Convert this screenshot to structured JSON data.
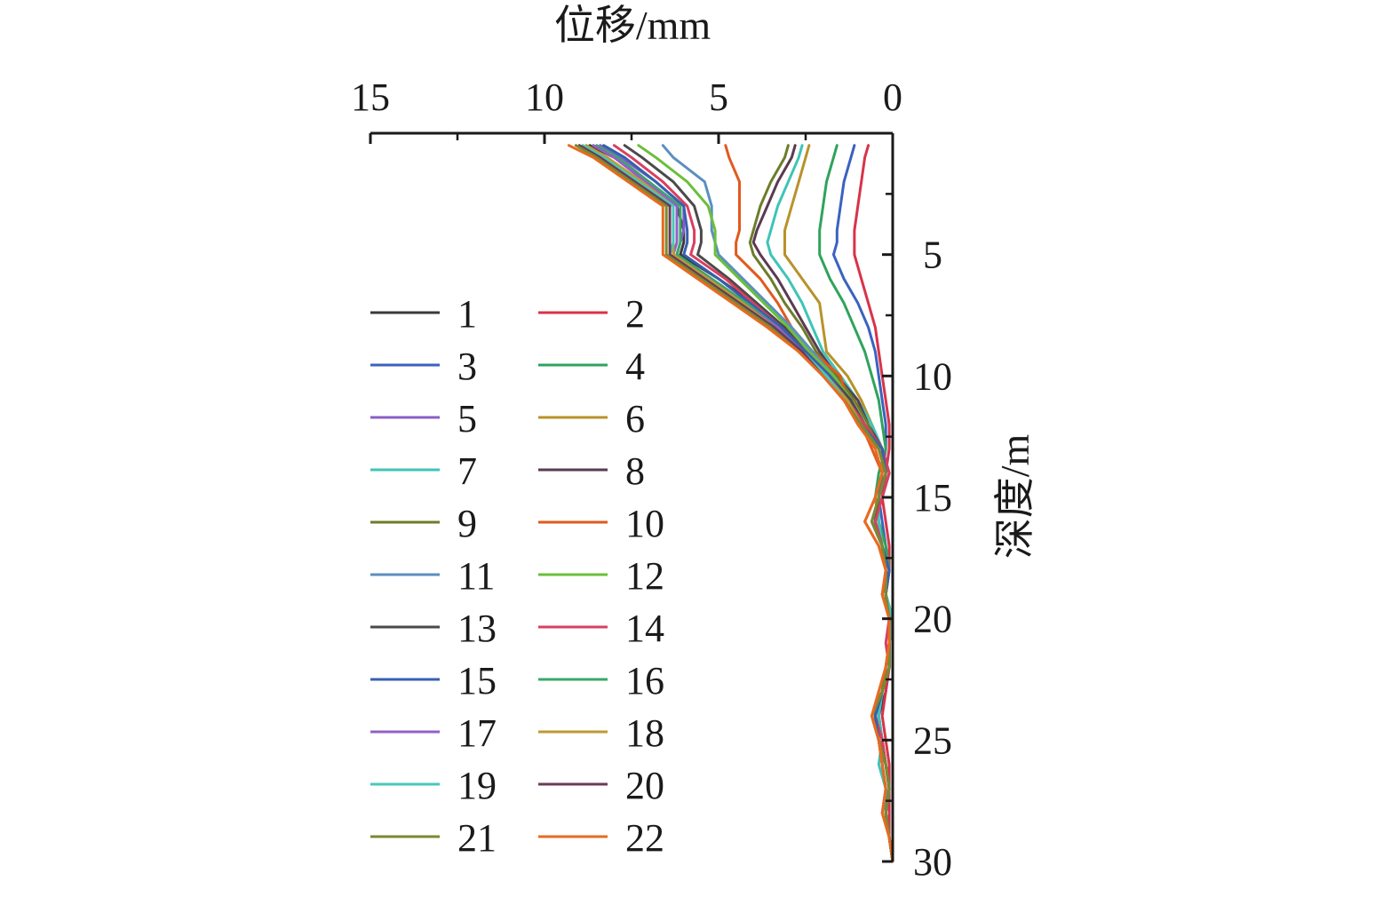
{
  "chart_data": {
    "type": "line",
    "title": "",
    "xlabel": "位移/mm",
    "ylabel": "深度/m",
    "xlim": [
      15,
      0
    ],
    "ylim": [
      0,
      30
    ],
    "x_axis_position": "top",
    "y_axis_position": "right",
    "x_ticks": [
      15,
      10,
      5,
      0
    ],
    "x_tick_labels": [
      "15",
      "10",
      "5",
      "0"
    ],
    "y_ticks": [
      5,
      10,
      15,
      20,
      25,
      30
    ],
    "y_tick_labels": [
      "5",
      "10",
      "15",
      "20",
      "25",
      "30"
    ],
    "grid": false,
    "legend_position": "lower-left, two columns",
    "depth": [
      0.5,
      1,
      2,
      3,
      4,
      4.5,
      5,
      6,
      7,
      8,
      9,
      10,
      11,
      12,
      13,
      14,
      15,
      16,
      17,
      18,
      19,
      20,
      21,
      22,
      23,
      24,
      25,
      26,
      27,
      28,
      29,
      30
    ],
    "series": [
      {
        "name": "1",
        "color": "#3a3a3a",
        "values": [
          8.7,
          8.0,
          7.0,
          6.2,
          6.0,
          6.0,
          6.1,
          5.0,
          4.0,
          3.2,
          2.5,
          1.7,
          1.2,
          0.8,
          0.3,
          0.1,
          0.3,
          0.5,
          0.3,
          0.1,
          0.2,
          0.0,
          0.1,
          0.1,
          0.2,
          0.4,
          0.3,
          0.2,
          0.1,
          0.2,
          0.1,
          0.0
        ]
      },
      {
        "name": "2",
        "color": "#d8334a",
        "values": [
          0.7,
          0.8,
          0.9,
          1.0,
          1.1,
          1.1,
          1.1,
          0.9,
          0.7,
          0.5,
          0.4,
          0.3,
          0.2,
          0.1,
          0.1,
          0.2,
          0.3,
          0.2,
          0.1,
          0.1,
          0.2,
          0.1,
          0.1,
          0.1,
          0.2,
          0.3,
          0.2,
          0.1,
          0.1,
          0.1,
          0.1,
          0.0
        ]
      },
      {
        "name": "3",
        "color": "#3a62c0",
        "values": [
          1.1,
          1.2,
          1.4,
          1.5,
          1.6,
          1.6,
          1.7,
          1.4,
          1.0,
          0.7,
          0.5,
          0.4,
          0.3,
          0.2,
          0.2,
          0.3,
          0.4,
          0.3,
          0.2,
          0.1,
          0.2,
          0.1,
          0.1,
          0.1,
          0.3,
          0.4,
          0.3,
          0.2,
          0.1,
          0.2,
          0.1,
          0.0
        ]
      },
      {
        "name": "4",
        "color": "#2fa35c",
        "values": [
          1.6,
          1.7,
          1.9,
          2.0,
          2.1,
          2.1,
          2.1,
          1.8,
          1.4,
          1.1,
          0.8,
          0.6,
          0.4,
          0.3,
          0.2,
          0.4,
          0.5,
          0.4,
          0.2,
          0.1,
          0.3,
          0.1,
          0.1,
          0.2,
          0.3,
          0.5,
          0.3,
          0.2,
          0.1,
          0.2,
          0.1,
          0.0
        ]
      },
      {
        "name": "5",
        "color": "#8a5cc7",
        "values": [
          8.4,
          7.8,
          6.8,
          6.0,
          6.0,
          6.1,
          6.2,
          5.2,
          4.2,
          3.3,
          2.5,
          1.8,
          1.3,
          0.9,
          0.4,
          0.2,
          0.4,
          0.6,
          0.3,
          0.2,
          0.2,
          0.0,
          0.1,
          0.1,
          0.3,
          0.5,
          0.4,
          0.2,
          0.1,
          0.2,
          0.1,
          0.0
        ]
      },
      {
        "name": "6",
        "color": "#b8922a",
        "values": [
          2.4,
          2.5,
          2.7,
          2.9,
          3.1,
          3.1,
          3.1,
          2.6,
          2.1,
          2.0,
          1.9,
          1.3,
          0.9,
          0.6,
          0.3,
          0.3,
          0.5,
          0.4,
          0.3,
          0.2,
          0.2,
          0.1,
          0.1,
          0.1,
          0.3,
          0.5,
          0.3,
          0.2,
          0.1,
          0.2,
          0.1,
          0.0
        ]
      },
      {
        "name": "7",
        "color": "#3ec4b8",
        "values": [
          2.6,
          2.7,
          3.0,
          3.3,
          3.5,
          3.6,
          3.5,
          3.0,
          2.6,
          2.3,
          2.0,
          1.5,
          1.0,
          0.6,
          0.3,
          0.2,
          0.4,
          0.4,
          0.3,
          0.2,
          0.2,
          0.1,
          0.1,
          0.1,
          0.3,
          0.4,
          0.3,
          0.4,
          0.2,
          0.2,
          0.1,
          0.0
        ]
      },
      {
        "name": "8",
        "color": "#5b3a52",
        "values": [
          2.8,
          2.9,
          3.3,
          3.6,
          3.9,
          4.0,
          3.8,
          3.3,
          2.9,
          2.5,
          2.1,
          1.6,
          1.0,
          0.7,
          0.3,
          0.2,
          0.4,
          0.5,
          0.3,
          0.2,
          0.2,
          0.1,
          0.1,
          0.2,
          0.3,
          0.6,
          0.4,
          0.3,
          0.2,
          0.2,
          0.1,
          0.0
        ]
      },
      {
        "name": "9",
        "color": "#6d7c2a",
        "values": [
          3.0,
          3.1,
          3.5,
          3.8,
          4.0,
          4.1,
          4.0,
          3.5,
          3.1,
          2.6,
          2.2,
          1.6,
          1.1,
          0.7,
          0.4,
          0.2,
          0.4,
          0.5,
          0.3,
          0.2,
          0.2,
          0.0,
          0.1,
          0.2,
          0.3,
          0.5,
          0.4,
          0.3,
          0.2,
          0.2,
          0.1,
          0.0
        ]
      },
      {
        "name": "10",
        "color": "#e05a1e",
        "values": [
          4.8,
          4.7,
          4.4,
          4.4,
          4.4,
          4.5,
          4.5,
          3.8,
          3.3,
          2.9,
          2.3,
          1.5,
          1.3,
          0.9,
          0.6,
          0.3,
          0.5,
          0.8,
          0.4,
          0.2,
          0.3,
          0.1,
          0.1,
          0.2,
          0.4,
          0.6,
          0.4,
          0.3,
          0.2,
          0.3,
          0.1,
          0.0
        ]
      },
      {
        "name": "11",
        "color": "#5b8fc0",
        "values": [
          6.6,
          6.3,
          5.4,
          5.2,
          5.2,
          5.1,
          5.0,
          4.3,
          3.6,
          2.9,
          2.3,
          1.7,
          1.2,
          0.8,
          0.3,
          0.2,
          0.4,
          0.5,
          0.3,
          0.2,
          0.2,
          0.1,
          0.1,
          0.1,
          0.3,
          0.5,
          0.3,
          0.3,
          0.2,
          0.2,
          0.1,
          0.0
        ]
      },
      {
        "name": "12",
        "color": "#6cbf3a",
        "values": [
          7.3,
          6.8,
          5.9,
          5.3,
          5.1,
          5.1,
          5.1,
          4.4,
          3.7,
          3.0,
          2.4,
          1.7,
          1.2,
          0.8,
          0.3,
          0.2,
          0.4,
          0.5,
          0.3,
          0.2,
          0.2,
          0.0,
          0.1,
          0.1,
          0.3,
          0.5,
          0.4,
          0.2,
          0.1,
          0.2,
          0.1,
          0.0
        ]
      },
      {
        "name": "13",
        "color": "#4a4a4a",
        "values": [
          7.7,
          7.2,
          6.3,
          5.7,
          5.5,
          5.5,
          5.6,
          4.7,
          3.9,
          3.1,
          2.5,
          1.8,
          1.2,
          0.8,
          0.3,
          0.2,
          0.4,
          0.5,
          0.3,
          0.2,
          0.2,
          0.1,
          0.1,
          0.1,
          0.3,
          0.5,
          0.4,
          0.2,
          0.1,
          0.2,
          0.1,
          0.0
        ]
      },
      {
        "name": "14",
        "color": "#d84060",
        "values": [
          8.0,
          7.5,
          6.6,
          5.9,
          5.7,
          5.7,
          5.8,
          4.8,
          4.0,
          3.2,
          2.5,
          1.8,
          1.3,
          0.8,
          0.3,
          0.1,
          0.3,
          0.5,
          0.3,
          0.1,
          0.2,
          0.1,
          0.2,
          0.1,
          0.3,
          0.5,
          0.3,
          0.2,
          0.1,
          0.2,
          0.1,
          0.0
        ]
      },
      {
        "name": "15",
        "color": "#3660b0",
        "values": [
          8.3,
          7.7,
          6.8,
          6.0,
          5.9,
          5.9,
          6.0,
          5.0,
          4.1,
          3.2,
          2.5,
          1.8,
          1.3,
          0.9,
          0.3,
          0.2,
          0.4,
          0.6,
          0.3,
          0.1,
          0.2,
          0.0,
          0.1,
          0.1,
          0.3,
          0.5,
          0.4,
          0.2,
          0.1,
          0.2,
          0.1,
          0.0
        ]
      },
      {
        "name": "16",
        "color": "#3aa86a",
        "values": [
          8.5,
          7.9,
          7.0,
          6.1,
          6.1,
          6.1,
          6.2,
          5.2,
          4.2,
          3.3,
          2.6,
          1.9,
          1.3,
          0.9,
          0.4,
          0.2,
          0.4,
          0.6,
          0.3,
          0.2,
          0.2,
          0.0,
          0.1,
          0.1,
          0.3,
          0.6,
          0.4,
          0.2,
          0.1,
          0.2,
          0.1,
          0.0
        ]
      },
      {
        "name": "17",
        "color": "#9260c8",
        "values": [
          8.6,
          8.0,
          7.1,
          6.2,
          6.2,
          6.2,
          6.3,
          5.3,
          4.3,
          3.3,
          2.6,
          1.9,
          1.3,
          0.9,
          0.4,
          0.2,
          0.4,
          0.6,
          0.3,
          0.2,
          0.2,
          0.0,
          0.1,
          0.1,
          0.3,
          0.6,
          0.4,
          0.2,
          0.1,
          0.2,
          0.1,
          0.0
        ]
      },
      {
        "name": "18",
        "color": "#c09a30",
        "values": [
          8.8,
          8.2,
          7.2,
          6.3,
          6.3,
          6.3,
          6.3,
          5.3,
          4.3,
          3.4,
          2.6,
          1.9,
          1.3,
          0.9,
          0.4,
          0.2,
          0.4,
          0.6,
          0.3,
          0.2,
          0.2,
          0.0,
          0.1,
          0.1,
          0.3,
          0.6,
          0.4,
          0.2,
          0.1,
          0.2,
          0.1,
          0.0
        ]
      },
      {
        "name": "19",
        "color": "#48c8b8",
        "values": [
          8.9,
          8.3,
          7.3,
          6.3,
          6.3,
          6.3,
          6.4,
          5.4,
          4.4,
          3.4,
          2.6,
          1.9,
          1.4,
          0.9,
          0.4,
          0.2,
          0.4,
          0.6,
          0.3,
          0.2,
          0.2,
          0.0,
          0.1,
          0.1,
          0.3,
          0.6,
          0.4,
          0.2,
          0.1,
          0.2,
          0.1,
          0.0
        ]
      },
      {
        "name": "20",
        "color": "#6a3a5a",
        "values": [
          9.0,
          8.4,
          7.4,
          6.4,
          6.4,
          6.4,
          6.4,
          5.4,
          4.4,
          3.4,
          2.6,
          2.0,
          1.4,
          0.9,
          0.4,
          0.2,
          0.4,
          0.6,
          0.3,
          0.2,
          0.2,
          0.1,
          0.1,
          0.1,
          0.3,
          0.6,
          0.4,
          0.2,
          0.1,
          0.2,
          0.1,
          0.0
        ]
      },
      {
        "name": "21",
        "color": "#7a8a30",
        "values": [
          9.1,
          8.5,
          7.5,
          6.5,
          6.5,
          6.5,
          6.5,
          5.5,
          4.5,
          3.5,
          2.7,
          2.0,
          1.4,
          0.9,
          0.4,
          0.2,
          0.4,
          0.6,
          0.3,
          0.2,
          0.2,
          0.1,
          0.1,
          0.1,
          0.3,
          0.6,
          0.4,
          0.2,
          0.1,
          0.2,
          0.1,
          0.0
        ]
      },
      {
        "name": "22",
        "color": "#e86a20",
        "values": [
          9.3,
          8.6,
          7.6,
          6.6,
          6.6,
          6.6,
          6.6,
          5.6,
          4.6,
          3.6,
          2.7,
          2.0,
          1.4,
          1.0,
          0.5,
          0.3,
          0.5,
          0.8,
          0.4,
          0.2,
          0.3,
          0.1,
          0.1,
          0.2,
          0.4,
          0.6,
          0.4,
          0.3,
          0.2,
          0.3,
          0.1,
          0.0
        ]
      }
    ]
  }
}
